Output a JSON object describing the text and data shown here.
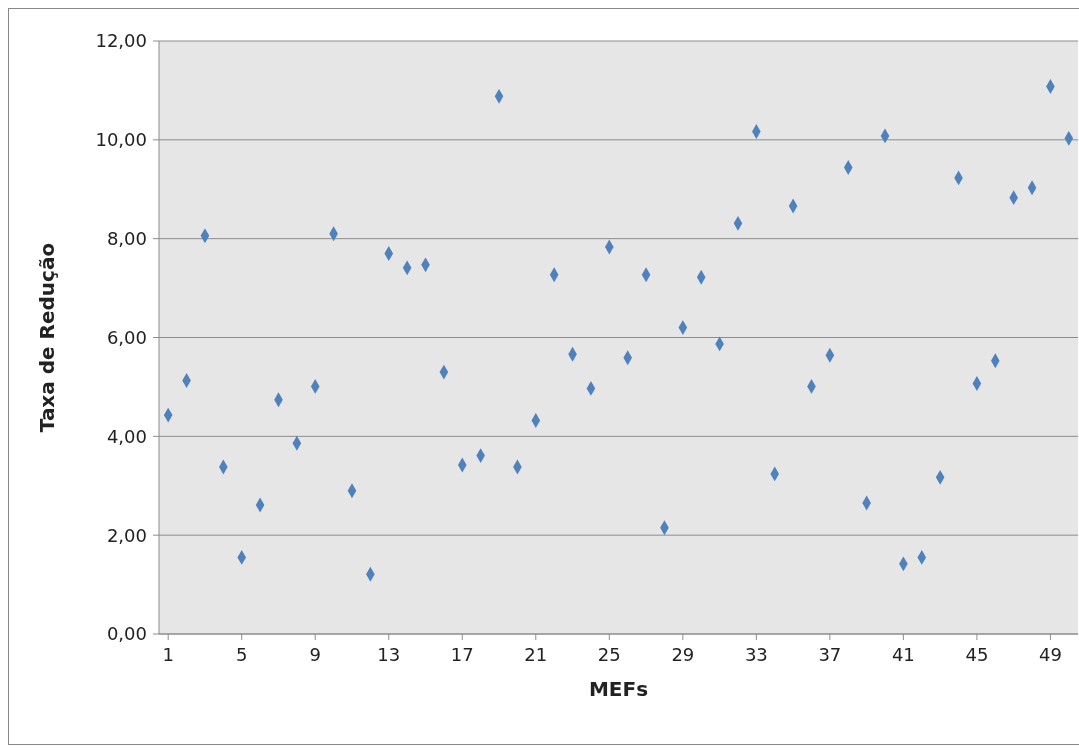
{
  "chart_data": {
    "type": "scatter",
    "xlabel": "MEFs",
    "ylabel": "Taxa  de  Redução",
    "x": [
      1,
      2,
      3,
      4,
      5,
      6,
      7,
      8,
      9,
      10,
      11,
      12,
      13,
      14,
      15,
      16,
      17,
      18,
      19,
      20,
      21,
      22,
      23,
      24,
      25,
      26,
      27,
      28,
      29,
      30,
      31,
      32,
      33,
      34,
      35,
      36,
      37,
      38,
      39,
      40,
      41,
      42,
      43,
      44,
      45,
      46,
      47,
      48,
      49,
      50
    ],
    "series": [
      {
        "color": "#4f81bd",
        "values": [
          4.43,
          5.13,
          8.06,
          3.38,
          1.55,
          2.61,
          4.74,
          3.86,
          5.01,
          8.1,
          2.9,
          1.21,
          7.7,
          7.41,
          7.47,
          5.3,
          3.42,
          3.61,
          10.88,
          3.38,
          4.32,
          7.27,
          5.66,
          4.97,
          7.83,
          5.59,
          7.27,
          2.15,
          6.2,
          7.22,
          5.87,
          8.31,
          10.17,
          3.24,
          8.66,
          5.01,
          5.64,
          9.44,
          2.65,
          10.08,
          1.42,
          1.55,
          3.17,
          9.23,
          5.07,
          5.53,
          8.83,
          9.03,
          11.08,
          10.03
        ]
      }
    ],
    "xlim": [
      0.5,
      50.5
    ],
    "xticks": [
      1,
      5,
      9,
      13,
      17,
      21,
      25,
      29,
      33,
      37,
      41,
      45,
      49
    ],
    "ylim": [
      0,
      12
    ],
    "yticks": [
      {
        "value": 0,
        "label": "0,00"
      },
      {
        "value": 2,
        "label": "2,00"
      },
      {
        "value": 4,
        "label": "4,00"
      },
      {
        "value": 6,
        "label": "6,00"
      },
      {
        "value": 8,
        "label": "8,00"
      },
      {
        "value": 10,
        "label": "10,00"
      },
      {
        "value": 12,
        "label": "12,00"
      }
    ],
    "grid": "y",
    "marker": "diamond",
    "legend": false
  }
}
